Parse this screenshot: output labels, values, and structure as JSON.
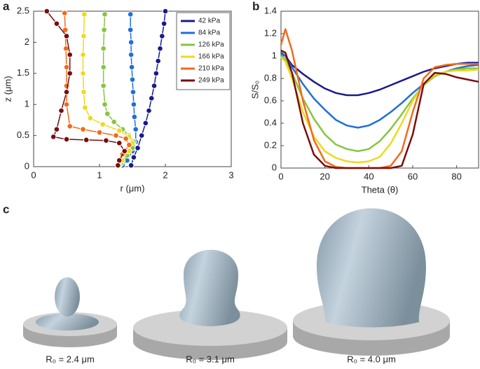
{
  "chart_data": [
    {
      "type": "line-scatter",
      "panel_label": "a",
      "xlabel": "r (μm)",
      "ylabel": "z (μm)",
      "xlim": [
        0,
        3
      ],
      "ylim": [
        0,
        2.5
      ],
      "xticks": [
        0,
        1,
        2,
        3
      ],
      "yticks": [
        0,
        0.5,
        1,
        1.5,
        2,
        2.5
      ],
      "legend": "upper right",
      "series": [
        {
          "name": "42 kPa",
          "color": "#1a1a8c",
          "x": [
            2.0,
            1.98,
            1.95,
            1.92,
            1.89,
            1.86,
            1.83,
            1.79,
            1.75,
            1.7,
            1.64,
            1.58,
            1.52,
            1.48
          ],
          "values": [
            2.5,
            2.3,
            2.1,
            1.9,
            1.7,
            1.5,
            1.3,
            1.1,
            0.9,
            0.7,
            0.5,
            0.3,
            0.15,
            0.02
          ]
        },
        {
          "name": "84 kPa",
          "color": "#1f6fd6",
          "x": [
            1.47,
            1.47,
            1.48,
            1.48,
            1.49,
            1.5,
            1.51,
            1.52,
            1.53,
            1.55,
            1.55,
            1.5,
            1.42,
            1.35
          ],
          "values": [
            2.45,
            2.2,
            2.0,
            1.8,
            1.6,
            1.4,
            1.2,
            1.0,
            0.8,
            0.6,
            0.4,
            0.25,
            0.1,
            0.02
          ]
        },
        {
          "name": "126 kPa",
          "color": "#86c540",
          "x": [
            1.08,
            1.07,
            1.06,
            1.06,
            1.06,
            1.08,
            1.12,
            1.22,
            1.35,
            1.45,
            1.52,
            1.5,
            1.42,
            1.33
          ],
          "values": [
            2.45,
            2.2,
            1.9,
            1.6,
            1.3,
            1.0,
            0.85,
            0.72,
            0.6,
            0.5,
            0.4,
            0.3,
            0.18,
            0.05
          ]
        },
        {
          "name": "166 kPa",
          "color": "#f0d81e",
          "x": [
            0.77,
            0.76,
            0.75,
            0.75,
            0.76,
            0.78,
            0.86,
            1.05,
            1.3,
            1.45,
            1.5,
            1.45,
            1.35,
            1.3
          ],
          "values": [
            2.45,
            2.1,
            1.8,
            1.5,
            1.2,
            0.95,
            0.78,
            0.68,
            0.58,
            0.48,
            0.38,
            0.25,
            0.1,
            0.02
          ]
        },
        {
          "name": "210 kPa",
          "color": "#f26a1b",
          "x": [
            0.47,
            0.48,
            0.49,
            0.5,
            0.5,
            0.5,
            0.55,
            0.75,
            1.0,
            1.25,
            1.4,
            1.45,
            1.35,
            1.28
          ],
          "values": [
            2.47,
            2.2,
            1.9,
            1.6,
            1.3,
            1.0,
            0.65,
            0.6,
            0.55,
            0.5,
            0.45,
            0.35,
            0.2,
            0.02
          ]
        },
        {
          "name": "249 kPa",
          "color": "#7a0d0d",
          "x": [
            0.2,
            0.35,
            0.5,
            0.55,
            0.55,
            0.5,
            0.42,
            0.35,
            0.3,
            0.5,
            0.8,
            1.1,
            1.3,
            1.38,
            1.3,
            1.28
          ],
          "values": [
            2.5,
            2.3,
            2.1,
            1.8,
            1.5,
            1.2,
            0.9,
            0.6,
            0.48,
            0.44,
            0.43,
            0.42,
            0.38,
            0.25,
            0.1,
            0.02
          ]
        }
      ]
    },
    {
      "type": "line",
      "panel_label": "b",
      "xlabel": "Theta (θ)",
      "ylabel": "S/S₀",
      "xlim": [
        0,
        90
      ],
      "ylim": [
        0,
        1.4
      ],
      "xticks": [
        0,
        20,
        40,
        60,
        80
      ],
      "yticks": [
        0,
        0.2,
        0.4,
        0.6,
        0.8,
        1,
        1.2,
        1.4
      ],
      "x": [
        0,
        2,
        5,
        10,
        15,
        20,
        25,
        30,
        35,
        40,
        45,
        50,
        55,
        60,
        65,
        70,
        75,
        80,
        85,
        90
      ],
      "series": [
        {
          "color": "#1a1a8c",
          "values": [
            1.03,
            1.0,
            0.92,
            0.84,
            0.77,
            0.71,
            0.67,
            0.65,
            0.65,
            0.67,
            0.7,
            0.74,
            0.78,
            0.82,
            0.86,
            0.89,
            0.91,
            0.93,
            0.94,
            0.94
          ]
        },
        {
          "color": "#1f6fd6",
          "values": [
            1.02,
            1.0,
            0.9,
            0.75,
            0.62,
            0.52,
            0.43,
            0.38,
            0.36,
            0.38,
            0.43,
            0.5,
            0.58,
            0.67,
            0.75,
            0.82,
            0.86,
            0.89,
            0.91,
            0.92
          ]
        },
        {
          "color": "#86c540",
          "values": [
            1.0,
            0.97,
            0.85,
            0.62,
            0.44,
            0.3,
            0.21,
            0.17,
            0.15,
            0.17,
            0.24,
            0.35,
            0.48,
            0.62,
            0.74,
            0.82,
            0.86,
            0.88,
            0.89,
            0.89
          ]
        },
        {
          "color": "#f0d81e",
          "values": [
            0.99,
            0.95,
            0.8,
            0.5,
            0.28,
            0.15,
            0.09,
            0.06,
            0.05,
            0.06,
            0.1,
            0.22,
            0.4,
            0.6,
            0.75,
            0.83,
            0.86,
            0.87,
            0.87,
            0.88
          ]
        },
        {
          "color": "#f26a1b",
          "values": [
            1.1,
            1.24,
            1.05,
            0.6,
            0.25,
            0.06,
            0.01,
            0,
            0,
            0,
            0,
            0.02,
            0.15,
            0.5,
            0.8,
            0.9,
            0.92,
            0.93,
            0.93,
            0.93
          ]
        },
        {
          "color": "#7a0d0d",
          "values": [
            1.05,
            1.03,
            0.85,
            0.4,
            0.12,
            0.02,
            0,
            0,
            0,
            0,
            0,
            0,
            0.02,
            0.3,
            0.75,
            0.85,
            0.84,
            0.81,
            0.79,
            0.77
          ]
        }
      ]
    }
  ],
  "renderings": {
    "panel_label": "c",
    "captions": [
      "R₀ = 2.4 μm",
      "R₀ = 3.1 μm",
      "R₀ = 4.0 μm"
    ]
  }
}
